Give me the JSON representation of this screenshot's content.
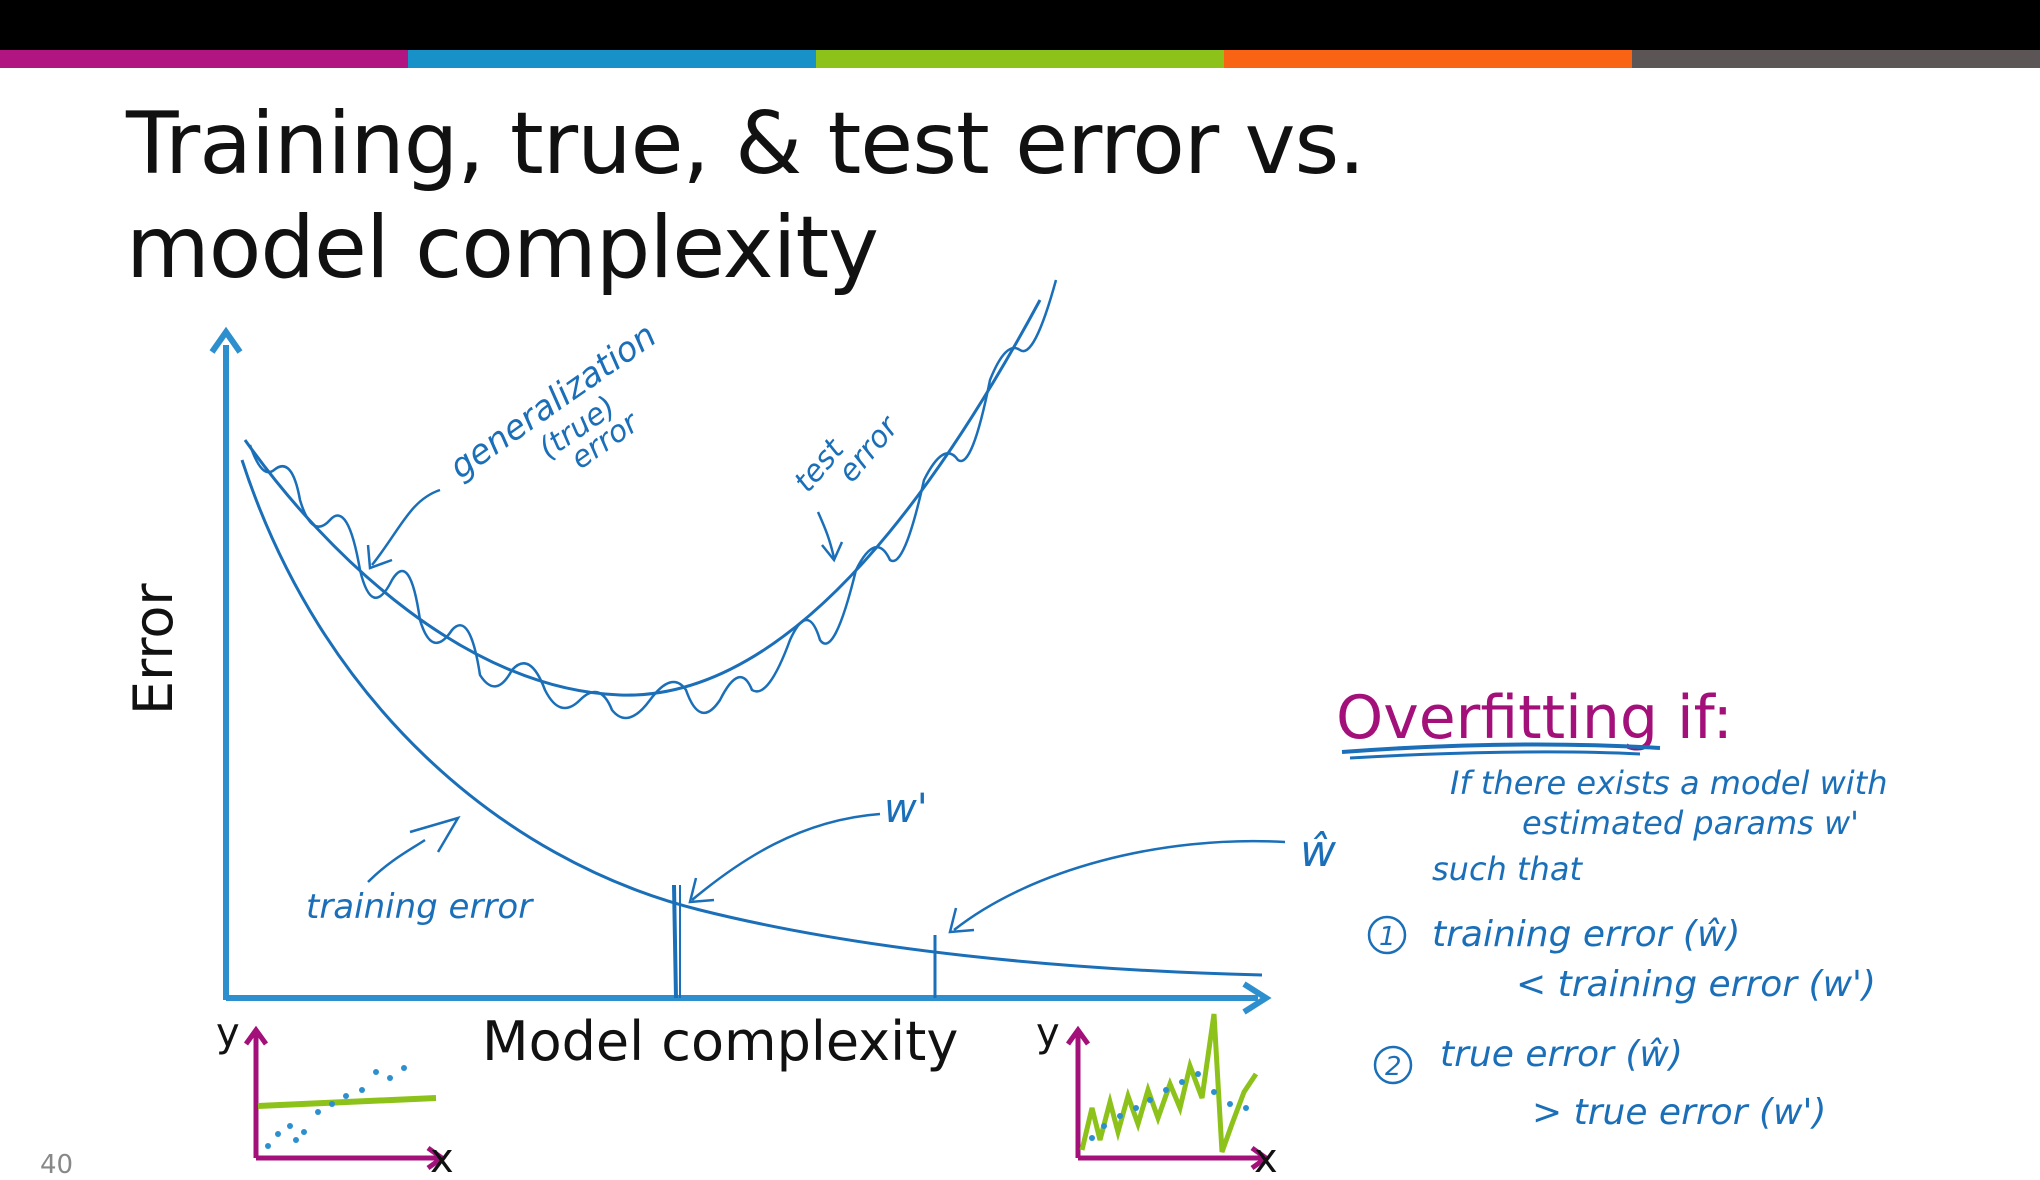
{
  "slide": {
    "title_line1": "Training, true, & test error vs.",
    "title_line2": "model complexity",
    "page_number": "40",
    "stripe_colors": [
      "#b01582",
      "#1890c8",
      "#8cc21a",
      "#f86414",
      "#5c5556"
    ]
  },
  "diagram": {
    "y_axis_label": "Error",
    "x_axis_label": "Model complexity",
    "annotations": {
      "generalization_line1": "generalization",
      "generalization_line2": "(true)",
      "generalization_line3": "error",
      "test_error_line1": "test",
      "test_error_line2": "error",
      "training_error": "training error",
      "w_prime": "w'",
      "w_hat": "ŵ"
    },
    "mini_plots": {
      "left_y": "y",
      "left_x": "x",
      "right_y": "y",
      "right_x": "x"
    }
  },
  "overfitting": {
    "heading": "Overfitting if:",
    "line1": "If there exists a model with",
    "line2": "estimated params w'",
    "line3": "such that",
    "cond1_number": "1",
    "cond1_a": "training error (ŵ)",
    "cond1_b": "< training error (w')",
    "cond2_number": "2",
    "cond2_a": "true error (ŵ)",
    "cond2_b": "> true error (w')"
  },
  "colors": {
    "ink_blue": "#1a6fb8",
    "axis_blue": "#2e8fce",
    "magenta": "#a3107a",
    "green": "#8cc21a"
  }
}
